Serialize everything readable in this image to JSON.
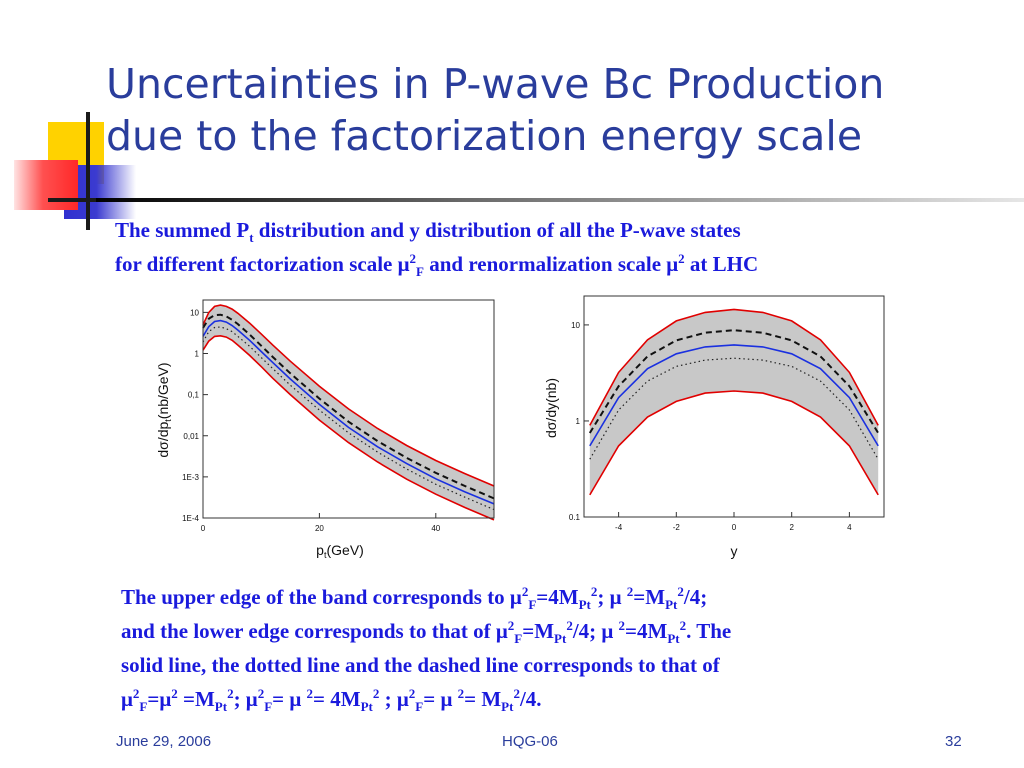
{
  "slide": {
    "title_line1": "Uncertainties in P-wave Bc Production",
    "title_line2": "due to the factorization energy scale"
  },
  "subtitle": {
    "l1_a": "The summed P",
    "l1_sub": "t",
    "l1_b": " distribution and y distribution of all the P-wave states",
    "l2_a": "for different factorization scale μ",
    "l2_sup": "2",
    "l2_sub": "F",
    "l2_b": " and renormalization scale μ",
    "l2_sup2": "2",
    "l2_c": " at LHC"
  },
  "caption": {
    "l1_a": "The upper edge of the band corresponds to μ",
    "l1_sup1": "2",
    "l1_sub1": "F",
    "l1_b": "=4M",
    "l1_sub2": "Pt",
    "l1_sup2": "2",
    "l1_c": "; μ ",
    "l1_sup3": "2",
    "l1_d": "=M",
    "l1_sub3": "Pt",
    "l1_sup4": "2",
    "l1_e": "/4;",
    "l2_a": "and the lower edge corresponds to that of μ",
    "l2_sup1": "2",
    "l2_sub1": "F",
    "l2_b": "=M",
    "l2_sub2": "Pt",
    "l2_sup2": "2",
    "l2_c": "/4; μ ",
    "l2_sup3": "2",
    "l2_d": "=4M",
    "l2_sub3": "Pt",
    "l2_sup4": "2",
    "l2_e": ". The",
    "l3": "solid line, the dotted line and the dashed line corresponds to that of",
    "l4_a": "μ",
    "l4_sup1": "2",
    "l4_sub1": "F",
    "l4_b": "=μ",
    "l4_sup2": "2",
    "l4_c": " =M",
    "l4_sub2": "Pt",
    "l4_sup3": "2",
    "l4_d": ";  μ",
    "l4_sup4": "2",
    "l4_sub3": "F",
    "l4_e": "= μ ",
    "l4_sup5": "2",
    "l4_f": "= 4M",
    "l4_sub4": "Pt",
    "l4_sup6": "2",
    "l4_g": " ; μ",
    "l4_sup7": "2",
    "l4_sub5": "F",
    "l4_h": "= μ ",
    "l4_sup8": "2",
    "l4_i": "= M",
    "l4_sub6": "Pt",
    "l4_sup9": "2",
    "l4_j": "/4."
  },
  "footer": {
    "date": "June 29, 2006",
    "event": "HQG-06",
    "page": "32"
  },
  "colors": {
    "title": "#2a3d9c",
    "body_text": "#1a1adc",
    "band_fill": "#c8c8c8",
    "band_edge": "#e00000",
    "solid_line": "#1a30e0",
    "accent_yellow": "#ffd200",
    "accent_blue": "#3b3bd0",
    "accent_red": "#ff3030"
  },
  "chart_data": [
    {
      "type": "line",
      "xlabel_main": "p",
      "xlabel_sub": "t",
      "xlabel_unit": "(GeV)",
      "ylabel_main": "dσ/dp",
      "ylabel_sub": "t",
      "ylabel_unit": "(nb/GeV)",
      "xlim": [
        0,
        50
      ],
      "ylim": [
        0.0001,
        20
      ],
      "yscale": "log",
      "x_ticks": [
        "0",
        "20",
        "40"
      ],
      "x_tick_values": [
        0,
        20,
        40
      ],
      "y_ticks": [
        "10",
        "1",
        "0,1",
        "0,01",
        "1E-3",
        "1E-4"
      ],
      "y_tick_values": [
        10,
        1,
        0.1,
        0.01,
        0.001,
        0.0001
      ],
      "x": [
        0,
        1,
        2,
        3,
        4,
        5,
        6,
        8,
        10,
        12,
        15,
        20,
        25,
        30,
        35,
        40,
        45,
        50
      ],
      "series": [
        {
          "values": [
            5,
            10,
            14,
            15,
            14,
            12,
            9.5,
            5.5,
            3.0,
            1.6,
            0.65,
            0.16,
            0.045,
            0.015,
            0.0058,
            0.0025,
            0.0012,
            0.0006
          ]
        },
        {
          "values": [
            1.2,
            2.0,
            2.6,
            2.7,
            2.5,
            2.1,
            1.6,
            0.9,
            0.48,
            0.25,
            0.1,
            0.024,
            0.0068,
            0.0023,
            0.00088,
            0.00038,
            0.00018,
            9e-05
          ]
        },
        {
          "values": [
            4.2,
            7.0,
            8.6,
            8.8,
            8.0,
            6.6,
            5.2,
            2.9,
            1.55,
            0.82,
            0.33,
            0.08,
            0.022,
            0.0074,
            0.0029,
            0.00125,
            0.0006,
            0.0003
          ]
        },
        {
          "values": [
            2.6,
            4.5,
            6.0,
            6.3,
            5.8,
            4.8,
            3.7,
            2.1,
            1.12,
            0.6,
            0.24,
            0.058,
            0.016,
            0.0054,
            0.0021,
            0.0009,
            0.00043,
            0.00022
          ]
        },
        {
          "values": [
            1.9,
            3.4,
            4.3,
            4.4,
            4.0,
            3.4,
            2.6,
            1.5,
            0.8,
            0.43,
            0.17,
            0.042,
            0.0118,
            0.004,
            0.00155,
            0.00066,
            0.00032,
            0.00016
          ]
        }
      ]
    },
    {
      "type": "line",
      "xlabel": "y",
      "ylabel": "dσ/dy(nb)",
      "xlim": [
        -5.2,
        5.2
      ],
      "ylim": [
        0.1,
        20
      ],
      "yscale": "log",
      "x_ticks": [
        "-4",
        "-2",
        "0",
        "2",
        "4"
      ],
      "x_tick_values": [
        -4,
        -2,
        0,
        2,
        4
      ],
      "y_ticks": [
        "10",
        "1",
        "0.1"
      ],
      "y_tick_values": [
        10,
        1,
        0.1
      ],
      "x": [
        -5,
        -4,
        -3,
        -2,
        -1,
        0,
        1,
        2,
        3,
        4,
        5
      ],
      "series": [
        {
          "values": [
            0.9,
            3.2,
            7.0,
            11.0,
            13.5,
            14.5,
            13.5,
            11.0,
            7.0,
            3.2,
            0.9
          ]
        },
        {
          "values": [
            0.17,
            0.55,
            1.1,
            1.6,
            1.95,
            2.05,
            1.95,
            1.6,
            1.1,
            0.55,
            0.17
          ]
        },
        {
          "values": [
            0.75,
            2.3,
            4.7,
            6.9,
            8.3,
            8.8,
            8.3,
            6.9,
            4.7,
            2.3,
            0.75
          ]
        },
        {
          "values": [
            0.55,
            1.75,
            3.5,
            5.0,
            5.9,
            6.2,
            5.9,
            5.0,
            3.5,
            1.75,
            0.55
          ]
        },
        {
          "values": [
            0.4,
            1.3,
            2.6,
            3.7,
            4.3,
            4.5,
            4.3,
            3.7,
            2.6,
            1.3,
            0.4
          ]
        }
      ]
    }
  ]
}
